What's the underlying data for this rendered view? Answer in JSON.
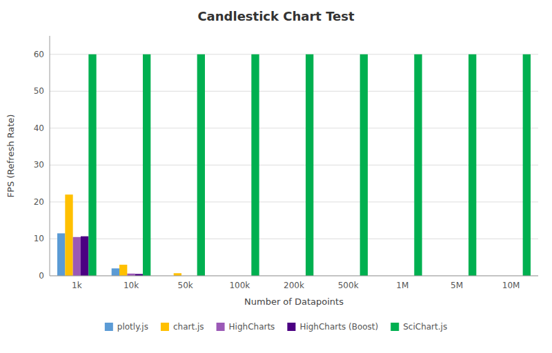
{
  "chart_data": {
    "type": "bar",
    "title": "Candlestick Chart Test",
    "x_label": "Number of Datapoints",
    "y_label": "FPS (Refresh Rate)",
    "categories": [
      "1k",
      "10k",
      "50k",
      "100k",
      "200k",
      "500k",
      "1M",
      "5M",
      "10M"
    ],
    "series": [
      {
        "name": "plotly.js",
        "color": "#5B9BD5",
        "values": [
          11.5,
          2.0,
          0,
          0,
          0,
          0,
          0,
          0,
          0
        ]
      },
      {
        "name": "chart.js",
        "color": "#FFC000",
        "values": [
          22.0,
          3.0,
          0.7,
          0,
          0,
          0,
          0,
          0,
          0
        ]
      },
      {
        "name": "HighCharts",
        "color": "#9B59B6",
        "values": [
          10.5,
          0.6,
          0,
          0,
          0,
          0,
          0,
          0,
          0
        ]
      },
      {
        "name": "HighCharts (Boost)",
        "color": "#4B0082",
        "values": [
          10.7,
          0.5,
          0,
          0,
          0,
          0,
          0,
          0,
          0
        ]
      },
      {
        "name": "SciChart.js",
        "color": "#00B050",
        "values": [
          60,
          60,
          60,
          60,
          60,
          60,
          60,
          60,
          60
        ]
      }
    ],
    "ylim": [
      0,
      65
    ],
    "yticks": [
      0,
      10,
      20,
      30,
      40,
      50,
      60
    ],
    "grid": true,
    "legend": "bottom"
  }
}
